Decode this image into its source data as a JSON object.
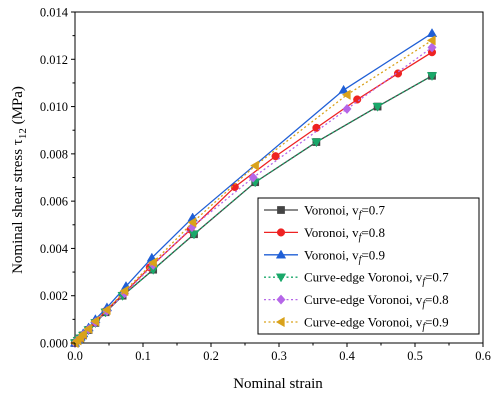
{
  "chart_data": {
    "type": "line",
    "xlabel": "Nominal strain",
    "ylabel": "Nominal shear stress τ",
    "ylabel_sub": "12",
    "ylabel_unit": " (MPa)",
    "xlim": [
      0,
      0.6
    ],
    "ylim": [
      0,
      0.014
    ],
    "x_ticks": [
      0.0,
      0.1,
      0.2,
      0.3,
      0.4,
      0.5,
      0.6
    ],
    "x_tick_labels": [
      "0.0",
      "0.1",
      "0.2",
      "0.3",
      "0.4",
      "0.5",
      "0.6"
    ],
    "y_ticks": [
      0,
      0.002,
      0.004,
      0.006,
      0.008,
      0.01,
      0.012,
      0.014
    ],
    "y_tick_labels": [
      "0.000",
      "0.002",
      "0.004",
      "0.006",
      "0.008",
      "0.010",
      "0.012",
      "0.014"
    ],
    "grid": false,
    "legend_position": "bottom-right",
    "series": [
      {
        "name": "Voronoi, vf=0.7",
        "label_prefix": "Voronoi, v",
        "label_suffix": "=0.7",
        "color": "#444444",
        "marker": "square",
        "dash": "solid",
        "x": [
          0,
          0.004,
          0.008,
          0.012,
          0.02,
          0.03,
          0.045,
          0.07,
          0.115,
          0.175,
          0.265,
          0.355,
          0.445,
          0.525
        ],
        "y": [
          0,
          0.0001,
          0.0002,
          0.00032,
          0.00055,
          0.00085,
          0.0013,
          0.002,
          0.0031,
          0.0046,
          0.0068,
          0.0085,
          0.01,
          0.0113
        ]
      },
      {
        "name": "Voronoi, vf=0.8",
        "label_prefix": "Voronoi, v",
        "label_suffix": "=0.8",
        "color": "#ee2222",
        "marker": "circle",
        "dash": "solid",
        "x": [
          0,
          0.004,
          0.008,
          0.012,
          0.02,
          0.03,
          0.045,
          0.072,
          0.11,
          0.17,
          0.235,
          0.295,
          0.355,
          0.415,
          0.475,
          0.525
        ],
        "y": [
          0,
          0.0001,
          0.00021,
          0.00034,
          0.00058,
          0.00088,
          0.00135,
          0.0021,
          0.0032,
          0.0048,
          0.0066,
          0.0079,
          0.0091,
          0.0103,
          0.0114,
          0.0123
        ]
      },
      {
        "name": "Voronoi, vf=0.9",
        "label_prefix": "Voronoi, v",
        "label_suffix": "=0.9",
        "color": "#1f5fd6",
        "marker": "triangle-up",
        "dash": "solid",
        "x": [
          0,
          0.004,
          0.008,
          0.012,
          0.02,
          0.03,
          0.047,
          0.075,
          0.113,
          0.173,
          0.395,
          0.525
        ],
        "y": [
          0,
          0.00012,
          0.00025,
          0.0004,
          0.00065,
          0.001,
          0.0015,
          0.0024,
          0.0036,
          0.0053,
          0.0107,
          0.0131
        ]
      },
      {
        "name": "Curve-edge Voronoi, vf=0.7",
        "label_prefix": "Curve-edge Voronoi, v",
        "label_suffix": "=0.7",
        "color": "#1aa86a",
        "marker": "triangle-down",
        "dash": "dotted",
        "x": [
          0,
          0.004,
          0.008,
          0.012,
          0.02,
          0.03,
          0.045,
          0.07,
          0.115,
          0.175,
          0.265,
          0.355,
          0.445,
          0.525
        ],
        "y": [
          0,
          0.0001,
          0.0002,
          0.00032,
          0.00055,
          0.00085,
          0.0013,
          0.002,
          0.0031,
          0.0046,
          0.0068,
          0.0085,
          0.01,
          0.0113
        ]
      },
      {
        "name": "Curve-edge Voronoi, vf=0.8",
        "label_prefix": "Curve-edge Voronoi, v",
        "label_suffix": "=0.8",
        "color": "#b566e8",
        "marker": "diamond",
        "dash": "dotted",
        "x": [
          0,
          0.004,
          0.008,
          0.012,
          0.02,
          0.03,
          0.047,
          0.073,
          0.115,
          0.172,
          0.262,
          0.4,
          0.525
        ],
        "y": [
          0,
          0.0001,
          0.00021,
          0.00034,
          0.00058,
          0.00088,
          0.00135,
          0.0021,
          0.0033,
          0.0049,
          0.007,
          0.0099,
          0.0125
        ]
      },
      {
        "name": "Curve-edge Voronoi, vf=0.9",
        "label_prefix": "Curve-edge Voronoi, v",
        "label_suffix": "=0.9",
        "color": "#d9a21b",
        "marker": "triangle-left",
        "dash": "dotted",
        "x": [
          0,
          0.004,
          0.008,
          0.012,
          0.02,
          0.03,
          0.047,
          0.073,
          0.115,
          0.173,
          0.265,
          0.4,
          0.525
        ],
        "y": [
          0,
          0.00011,
          0.00023,
          0.00037,
          0.0006,
          0.00092,
          0.0014,
          0.0022,
          0.0034,
          0.0051,
          0.0075,
          0.0105,
          0.0128
        ]
      }
    ]
  }
}
